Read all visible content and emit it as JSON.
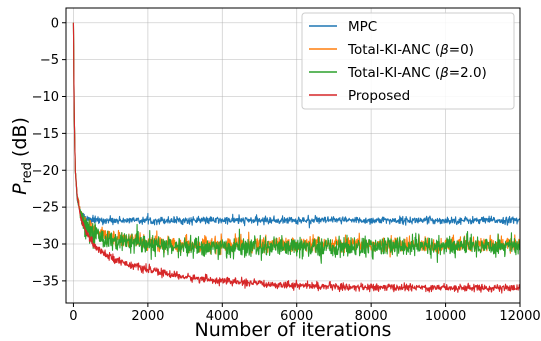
{
  "chart_data": {
    "type": "line",
    "title": "",
    "xlabel": "Number of iterations",
    "ylabel": {
      "symbol": "P",
      "subscript": "red",
      "unit": "(dB)"
    },
    "xlim": [
      -200,
      12000
    ],
    "ylim": [
      -38,
      2
    ],
    "xticks": [
      0,
      2000,
      4000,
      6000,
      8000,
      10000,
      12000
    ],
    "yticks": [
      0,
      -5,
      -10,
      -15,
      -20,
      -25,
      -30,
      -35
    ],
    "xtick_labels": [
      "0",
      "2000",
      "4000",
      "6000",
      "8000",
      "10000",
      "12000"
    ],
    "ytick_labels": [
      "0",
      "−5",
      "−10",
      "−15",
      "−20",
      "−25",
      "−30",
      "−35"
    ],
    "grid": true,
    "legend_position": "top-right",
    "series": [
      {
        "name": "MPC",
        "color": "#1f77b4",
        "noise": 0.25,
        "x": [
          0,
          20,
          50,
          100,
          200,
          300,
          400,
          600,
          12000
        ],
        "y": [
          0,
          -12,
          -20,
          -24,
          -25.8,
          -26.4,
          -26.7,
          -26.8,
          -26.8
        ]
      },
      {
        "name": "Total-KI-ANC (β=0)",
        "legend_parts": [
          "Total-KI-ANC (",
          "β",
          "=0)"
        ],
        "color": "#ff7f0e",
        "noise": 0.5,
        "x": [
          0,
          20,
          50,
          100,
          200,
          300,
          500,
          700,
          1000,
          1500,
          2000,
          3000,
          4000,
          6000,
          8000,
          12000
        ],
        "y": [
          0,
          -12,
          -20,
          -23.5,
          -26,
          -27,
          -28,
          -28.6,
          -29.1,
          -29.5,
          -29.8,
          -30.0,
          -30.1,
          -30.1,
          -30.1,
          -30.1
        ]
      },
      {
        "name": "Total-KI-ANC (β=2.0)",
        "legend_parts": [
          "Total-KI-ANC (",
          "β",
          "=2.0)"
        ],
        "color": "#2ca02c",
        "noise": 0.7,
        "x": [
          0,
          20,
          50,
          100,
          200,
          300,
          500,
          700,
          1000,
          1500,
          2000,
          3000,
          4000,
          6000,
          8000,
          12000
        ],
        "y": [
          0,
          -12,
          -20,
          -23.5,
          -26.2,
          -27.3,
          -28.4,
          -29.0,
          -29.5,
          -29.9,
          -30.2,
          -30.4,
          -30.5,
          -30.5,
          -30.4,
          -30.2
        ]
      },
      {
        "name": "Proposed",
        "color": "#d62728",
        "noise": 0.25,
        "x": [
          0,
          20,
          50,
          100,
          200,
          300,
          500,
          700,
          1000,
          1500,
          2000,
          3000,
          4000,
          5000,
          6000,
          7000,
          8000,
          10000,
          12000
        ],
        "y": [
          0,
          -12,
          -20,
          -23.5,
          -26.5,
          -28,
          -29.8,
          -30.8,
          -31.8,
          -32.8,
          -33.5,
          -34.5,
          -35.0,
          -35.4,
          -35.6,
          -35.8,
          -35.9,
          -35.9,
          -36.0
        ]
      }
    ]
  }
}
